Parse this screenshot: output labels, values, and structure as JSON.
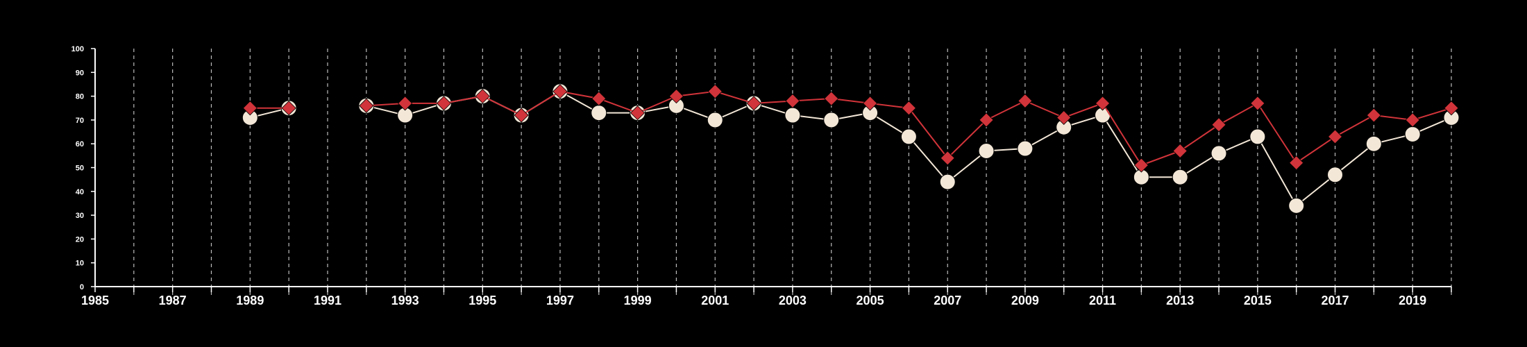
{
  "chart_data": {
    "type": "line",
    "title": "",
    "xlabel": "",
    "ylabel": "",
    "xlim": [
      1985,
      2020
    ],
    "ylim": [
      0,
      100
    ],
    "x_ticks": [
      "1985",
      "1987",
      "1989",
      "1991",
      "1993",
      "1995",
      "1997",
      "1999",
      "2001",
      "2003",
      "2005",
      "2007",
      "2009",
      "2011",
      "2013",
      "2015",
      "2017",
      "2019"
    ],
    "y_ticks": [
      "0",
      "10",
      "20",
      "30",
      "40",
      "50",
      "60",
      "70",
      "80",
      "90",
      "100"
    ],
    "grid": "vertical dashed lines at every year",
    "legend": "none",
    "x": [
      1989,
      1990,
      1991,
      1992,
      1993,
      1994,
      1995,
      1996,
      1997,
      1998,
      1999,
      2000,
      2001,
      2002,
      2003,
      2004,
      2005,
      2006,
      2007,
      2008,
      2009,
      2010,
      2011,
      2012,
      2013,
      2014,
      2015,
      2016,
      2017,
      2018,
      2019,
      2020
    ],
    "series": [
      {
        "marker": "circle",
        "color": "#f3e7d7",
        "values": [
          71,
          75,
          null,
          76,
          72,
          77,
          80,
          72,
          82,
          73,
          73,
          76,
          70,
          77,
          72,
          70,
          73,
          63,
          44,
          57,
          58,
          67,
          72,
          46,
          46,
          56,
          63,
          34,
          47,
          60,
          64,
          71
        ]
      },
      {
        "marker": "diamond",
        "color": "#d1343a",
        "values": [
          75,
          75,
          null,
          76,
          77,
          77,
          80,
          72,
          82,
          79,
          73,
          80,
          82,
          77,
          78,
          79,
          77,
          75,
          54,
          70,
          78,
          71,
          77,
          51,
          57,
          68,
          77,
          52,
          63,
          72,
          70,
          75
        ]
      }
    ]
  }
}
